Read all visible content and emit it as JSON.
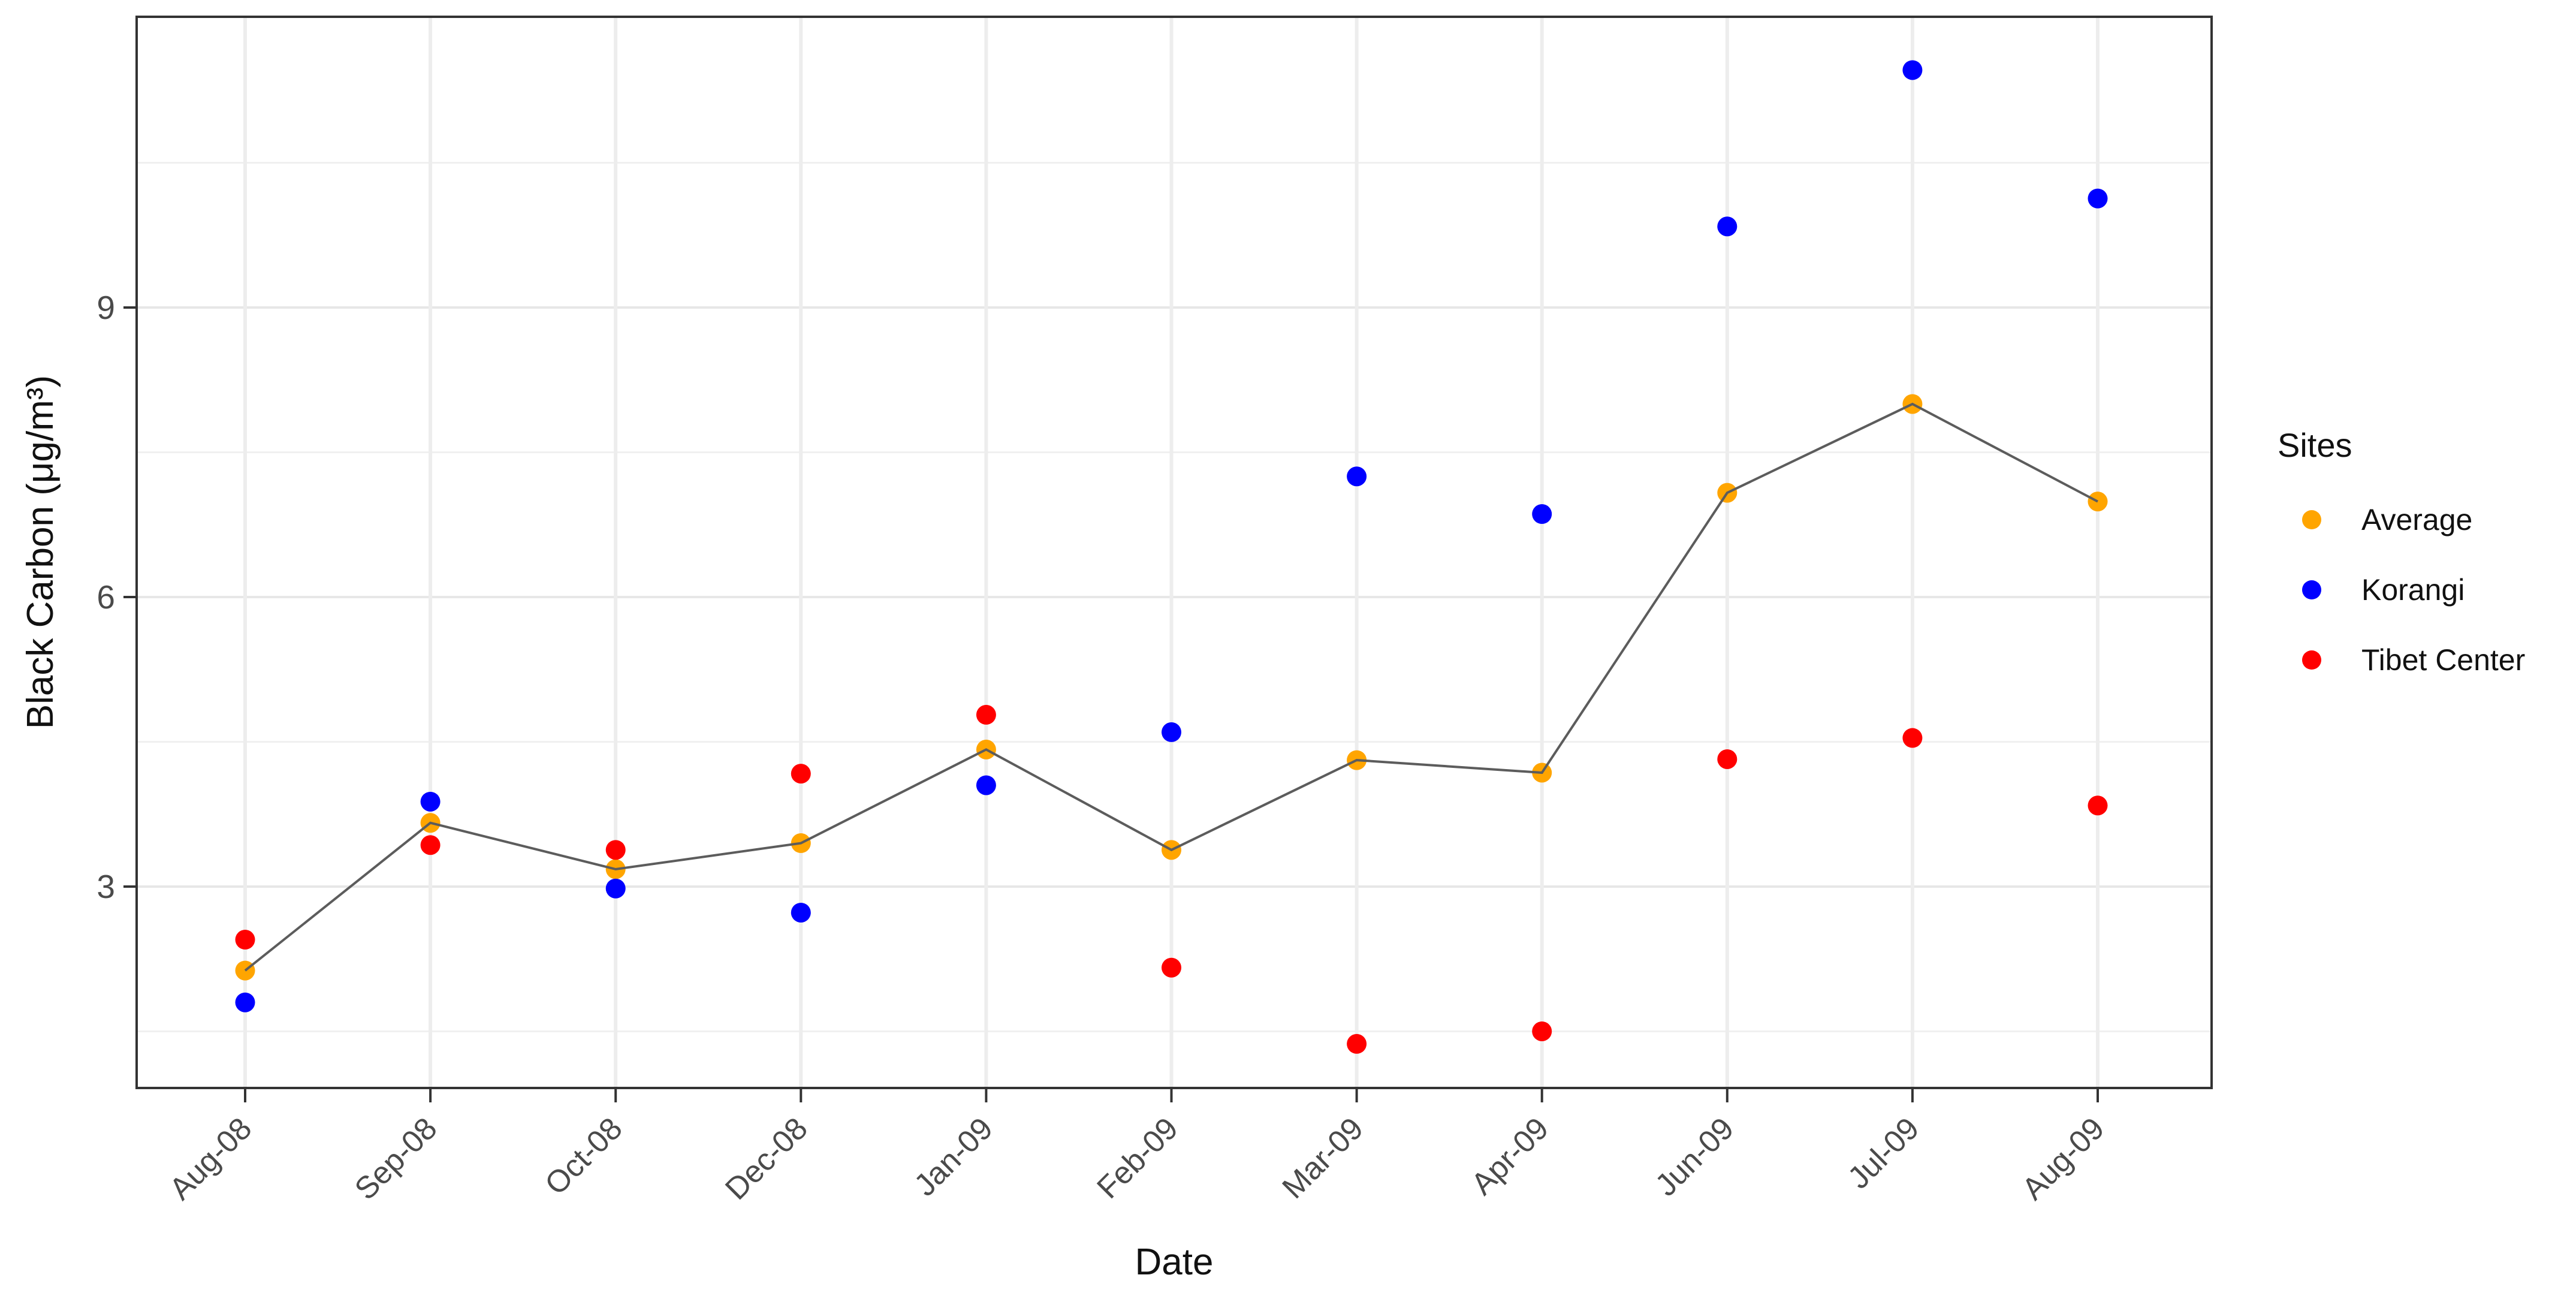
{
  "chart_data": {
    "type": "scatter",
    "title": "",
    "xlabel": "Date",
    "ylabel": "Black Carbon (μg/m³)",
    "legend_title": "Sites",
    "legend_position": "right",
    "grid": "horizontal major+minor, vertical major per category",
    "categories": [
      "Aug-08",
      "Sep-08",
      "Oct-08",
      "Dec-08",
      "Jan-09",
      "Feb-09",
      "Mar-09",
      "Apr-09",
      "Jun-09",
      "Jul-09",
      "Aug-09"
    ],
    "series": [
      {
        "name": "Average",
        "color": "#FFA500",
        "has_trend_line": true,
        "values": [
          2.13,
          3.66,
          3.18,
          3.45,
          4.42,
          3.38,
          4.31,
          4.18,
          7.08,
          8.0,
          6.99
        ]
      },
      {
        "name": "Korangi",
        "color": "#0000FF",
        "has_trend_line": false,
        "values": [
          1.8,
          3.88,
          2.98,
          2.73,
          4.05,
          4.6,
          7.25,
          6.86,
          9.84,
          11.46,
          10.13
        ]
      },
      {
        "name": "Tibet Center",
        "color": "#FF0000",
        "has_trend_line": false,
        "values": [
          2.45,
          3.43,
          3.38,
          4.17,
          4.78,
          2.16,
          1.37,
          1.5,
          4.32,
          4.54,
          3.84
        ]
      }
    ],
    "yticks": [
      3,
      6,
      9
    ],
    "minor_yticks": [
      1.5,
      4.5,
      7.5,
      10.5
    ],
    "ylim": [
      0.91,
      12.01
    ],
    "trend_line_color": "#5c5c5c"
  }
}
